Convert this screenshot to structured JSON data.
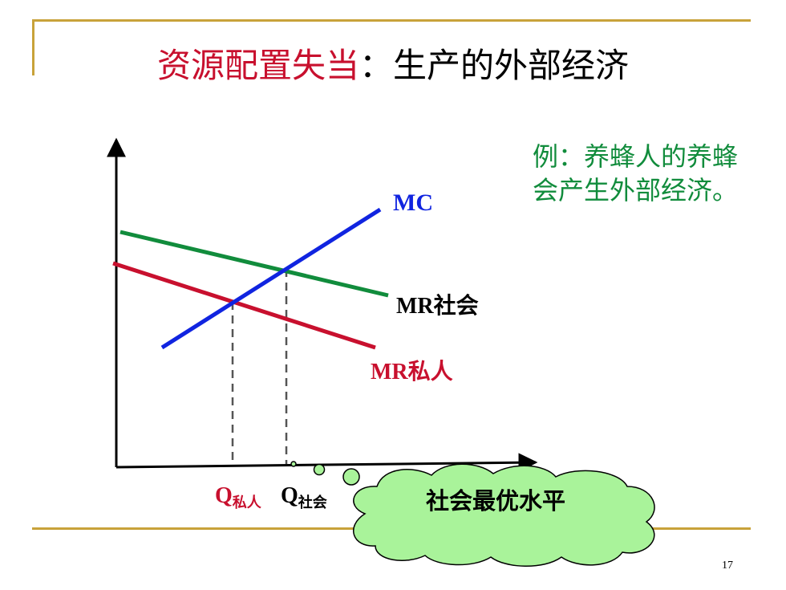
{
  "title": {
    "part1": "资源配置失当",
    "part2": "：生产的外部经济"
  },
  "note": {
    "text": "例：养蜂人的养蜂会产生外部经济。",
    "color": "#118c3c"
  },
  "curves": {
    "mc": {
      "label": "MC",
      "color": "#1024e0"
    },
    "mr_social": {
      "label": "MR社会",
      "color": "#118c3c"
    },
    "mr_private": {
      "label": "MR私人",
      "color": "#c8102e"
    }
  },
  "axis_labels": {
    "q_private": {
      "main": "Q",
      "sub": "私人"
    },
    "q_social": {
      "main": "Q",
      "sub": "社会"
    }
  },
  "callout": {
    "text": "社会最优水平",
    "fill": "#a9f39a"
  },
  "page_number": "17"
}
